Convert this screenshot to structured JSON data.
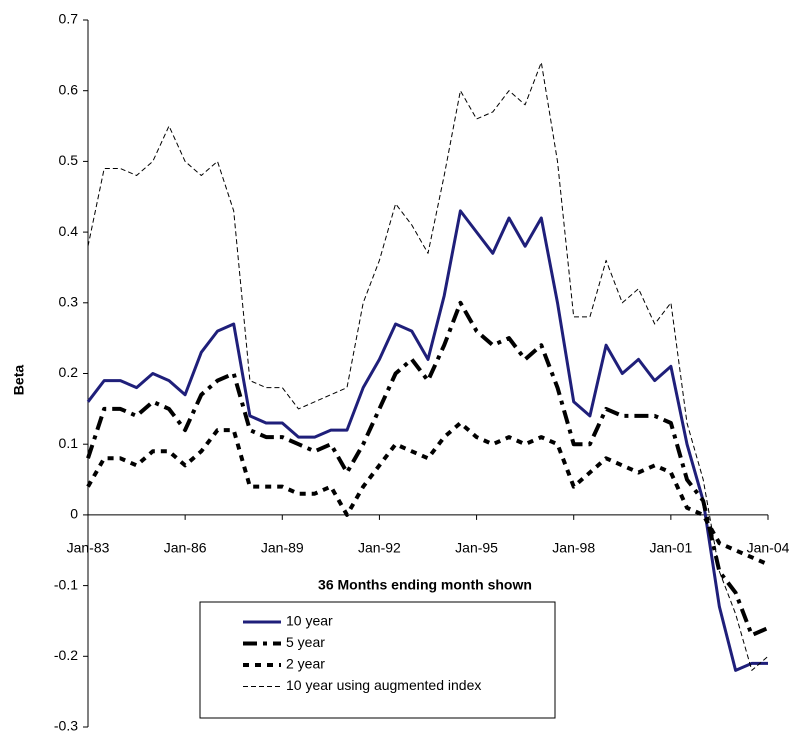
{
  "chart_data": {
    "type": "line",
    "y_label": "Beta",
    "x_label": "36 Months ending month shown",
    "x": [
      1983,
      1983.5,
      1984,
      1984.5,
      1985,
      1985.5,
      1986,
      1986.5,
      1987,
      1987.5,
      1988,
      1988.5,
      1989,
      1989.5,
      1990,
      1990.5,
      1991,
      1991.5,
      1992,
      1992.5,
      1993,
      1993.5,
      1994,
      1994.5,
      1995,
      1995.5,
      1996,
      1996.5,
      1997,
      1997.5,
      1998,
      1998.5,
      1999,
      1999.5,
      2000,
      2000.5,
      2001,
      2001.5,
      2002,
      2002.5,
      2003,
      2003.5,
      2004
    ],
    "series": [
      {
        "name": "10 year",
        "color": "#1f1f7a",
        "values": [
          0.16,
          0.19,
          0.19,
          0.18,
          0.2,
          0.19,
          0.17,
          0.23,
          0.26,
          0.27,
          0.14,
          0.13,
          0.13,
          0.11,
          0.11,
          0.12,
          0.12,
          0.18,
          0.22,
          0.27,
          0.26,
          0.22,
          0.31,
          0.43,
          0.4,
          0.37,
          0.42,
          0.38,
          0.42,
          0.3,
          0.16,
          0.14,
          0.24,
          0.2,
          0.22,
          0.19,
          0.21,
          0.1,
          0.02,
          -0.13,
          -0.22,
          -0.21,
          -0.21
        ]
      },
      {
        "name": "5 year",
        "color": "#000000",
        "values": [
          0.08,
          0.15,
          0.15,
          0.14,
          0.16,
          0.15,
          0.12,
          0.17,
          0.19,
          0.2,
          0.12,
          0.11,
          0.11,
          0.1,
          0.09,
          0.1,
          0.06,
          0.1,
          0.15,
          0.2,
          0.22,
          0.19,
          0.24,
          0.3,
          0.26,
          0.24,
          0.25,
          0.22,
          0.24,
          0.18,
          0.1,
          0.1,
          0.15,
          0.14,
          0.14,
          0.14,
          0.13,
          0.05,
          0.02,
          -0.08,
          -0.11,
          -0.17,
          -0.16
        ]
      },
      {
        "name": "2 year",
        "color": "#000000",
        "values": [
          0.04,
          0.08,
          0.08,
          0.07,
          0.09,
          0.09,
          0.07,
          0.09,
          0.12,
          0.12,
          0.04,
          0.04,
          0.04,
          0.03,
          0.03,
          0.04,
          0.0,
          0.04,
          0.07,
          0.1,
          0.09,
          0.08,
          0.11,
          0.13,
          0.11,
          0.1,
          0.11,
          0.1,
          0.11,
          0.1,
          0.04,
          0.06,
          0.08,
          0.07,
          0.06,
          0.07,
          0.06,
          0.01,
          0.0,
          -0.04,
          -0.05,
          -0.06,
          -0.07
        ]
      },
      {
        "name": "10 year using augmented index",
        "color": "#000000",
        "values": [
          0.38,
          0.49,
          0.49,
          0.48,
          0.5,
          0.55,
          0.5,
          0.48,
          0.5,
          0.43,
          0.19,
          0.18,
          0.18,
          0.15,
          0.16,
          0.17,
          0.18,
          0.3,
          0.36,
          0.44,
          0.41,
          0.37,
          0.48,
          0.6,
          0.56,
          0.57,
          0.6,
          0.58,
          0.64,
          0.5,
          0.28,
          0.28,
          0.36,
          0.3,
          0.32,
          0.27,
          0.3,
          0.13,
          0.05,
          -0.08,
          -0.14,
          -0.22,
          -0.2
        ]
      }
    ],
    "xlim": [
      1983,
      2004
    ],
    "xticks": [
      {
        "value": 1983,
        "label": "Jan-83"
      },
      {
        "value": 1986,
        "label": "Jan-86"
      },
      {
        "value": 1989,
        "label": "Jan-89"
      },
      {
        "value": 1992,
        "label": "Jan-92"
      },
      {
        "value": 1995,
        "label": "Jan-95"
      },
      {
        "value": 1998,
        "label": "Jan-98"
      },
      {
        "value": 2001,
        "label": "Jan-01"
      },
      {
        "value": 2004,
        "label": "Jan-04"
      }
    ],
    "ylim": [
      -0.3,
      0.7
    ],
    "yticks": [
      -0.3,
      -0.2,
      -0.1,
      0,
      0.1,
      0.2,
      0.3,
      0.4,
      0.5,
      0.6,
      0.7
    ]
  }
}
